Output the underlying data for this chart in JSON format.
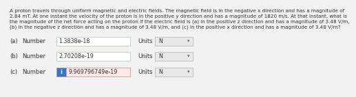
{
  "title_text": "A proton travels through uniform magnetic and electric fields. The magnetic field is in the negative x direction and has a magnitude of\n2.84 mT. At one instant the velocity of the proton is in the positive y direction and has a magnitude of 1820 m/s. At that instant, what is\nthe magnitude of the net force acting on the proton if the electric field is (a) in the positive z direction and has a magnitude of 3.48 V/m,\n(b) in the negative z direction and has a magnitude of 3.48 V/m, and (c) in the positive x direction and has a magnitude of 3.48 V/m?",
  "rows": [
    {
      "label": "(a)",
      "prefix": "Number",
      "value": "1.3838e-18",
      "units_label": "Units",
      "units_value": "N",
      "highlight": false
    },
    {
      "label": "(b)",
      "prefix": "Number",
      "value": "2.70208e-19",
      "units_label": "Units",
      "units_value": "N",
      "highlight": false
    },
    {
      "label": "(c)",
      "prefix": "Number",
      "value": "9.969796749e-19",
      "units_label": "Units",
      "units_value": "N",
      "highlight": true
    }
  ],
  "bg_color": "#f2f2f2",
  "box_bg": "#ffffff",
  "box_border": "#b0c4b0",
  "highlight_box_bg": "#ffe8e8",
  "highlight_box_border": "#cc8888",
  "highlight_icon_color": "#3377cc",
  "units_box_bg": "#e8e8e8",
  "units_box_border": "#b0b0b0",
  "text_color": "#333333",
  "title_fontsize": 5.2,
  "row_fontsize": 6.0,
  "value_fontsize": 5.8
}
